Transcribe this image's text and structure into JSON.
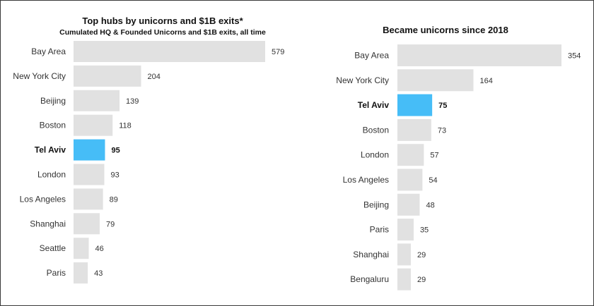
{
  "chart_data": [
    {
      "type": "bar",
      "orientation": "horizontal",
      "title": "Top hubs by unicorns and $1B exits*",
      "subtitle": "Cumulated HQ & Founded Unicorns and $1B exits, all time",
      "categories": [
        "Bay Area",
        "New York City",
        "Beijing",
        "Boston",
        "Tel Aviv",
        "London",
        "Los Angeles",
        "Shanghai",
        "Seattle",
        "Paris"
      ],
      "values": [
        579,
        204,
        139,
        118,
        95,
        93,
        89,
        79,
        46,
        43
      ],
      "highlight": "Tel Aviv",
      "xlim": [
        0,
        579
      ],
      "grid": false,
      "legend": "none"
    },
    {
      "type": "bar",
      "orientation": "horizontal",
      "title": "Became unicorns since 2018",
      "subtitle": "",
      "categories": [
        "Bay Area",
        "New York City",
        "Tel Aviv",
        "Boston",
        "London",
        "Los Angeles",
        "Beijing",
        "Paris",
        "Shanghai",
        "Bengaluru"
      ],
      "values": [
        354,
        164,
        75,
        73,
        57,
        54,
        48,
        35,
        29,
        29
      ],
      "highlight": "Tel Aviv",
      "xlim": [
        0,
        354
      ],
      "grid": false,
      "legend": "none"
    }
  ],
  "colors": {
    "bar": "#e1e1e1",
    "highlight": "#46bdf7",
    "label": "#333333"
  }
}
